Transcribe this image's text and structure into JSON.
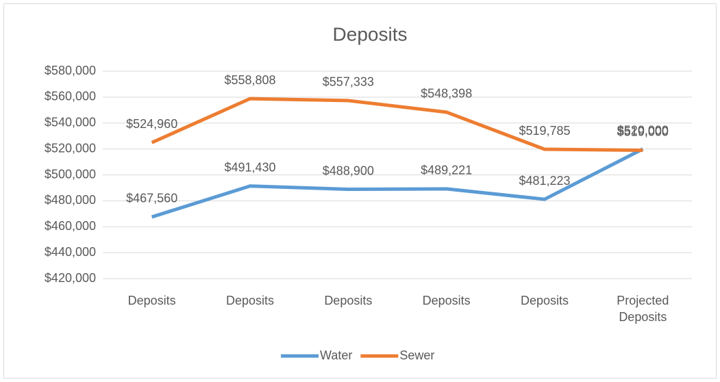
{
  "chart_data": {
    "type": "line",
    "title": "Deposits",
    "categories": [
      "Deposits",
      "Deposits",
      "Deposits",
      "Deposits",
      "Deposits",
      "Projected Deposits"
    ],
    "series": [
      {
        "name": "Water",
        "color": "#5b9bd5",
        "values": [
          467560,
          491430,
          488900,
          489221,
          481223,
          520000
        ],
        "value_labels": [
          "$467,560",
          "$491,430",
          "$488,900",
          "$489,221",
          "$481,223",
          "$520,000"
        ]
      },
      {
        "name": "Sewer",
        "color": "#ed7d31",
        "values": [
          524960,
          558808,
          557333,
          548398,
          519785,
          519000
        ],
        "value_labels": [
          "$524,960",
          "$558,808",
          "$557,333",
          "$548,398",
          "$519,785",
          "$519,000"
        ]
      }
    ],
    "ylim": [
      420000,
      580000
    ],
    "yticks": [
      {
        "value": 420000,
        "label": "$420,000"
      },
      {
        "value": 440000,
        "label": "$440,000"
      },
      {
        "value": 460000,
        "label": "$460,000"
      },
      {
        "value": 480000,
        "label": "$480,000"
      },
      {
        "value": 500000,
        "label": "$500,000"
      },
      {
        "value": 520000,
        "label": "$520,000"
      },
      {
        "value": 540000,
        "label": "$540,000"
      },
      {
        "value": 560000,
        "label": "$560,000"
      },
      {
        "value": 580000,
        "label": "$580,000"
      }
    ],
    "grid": true,
    "legend": "bottom"
  }
}
